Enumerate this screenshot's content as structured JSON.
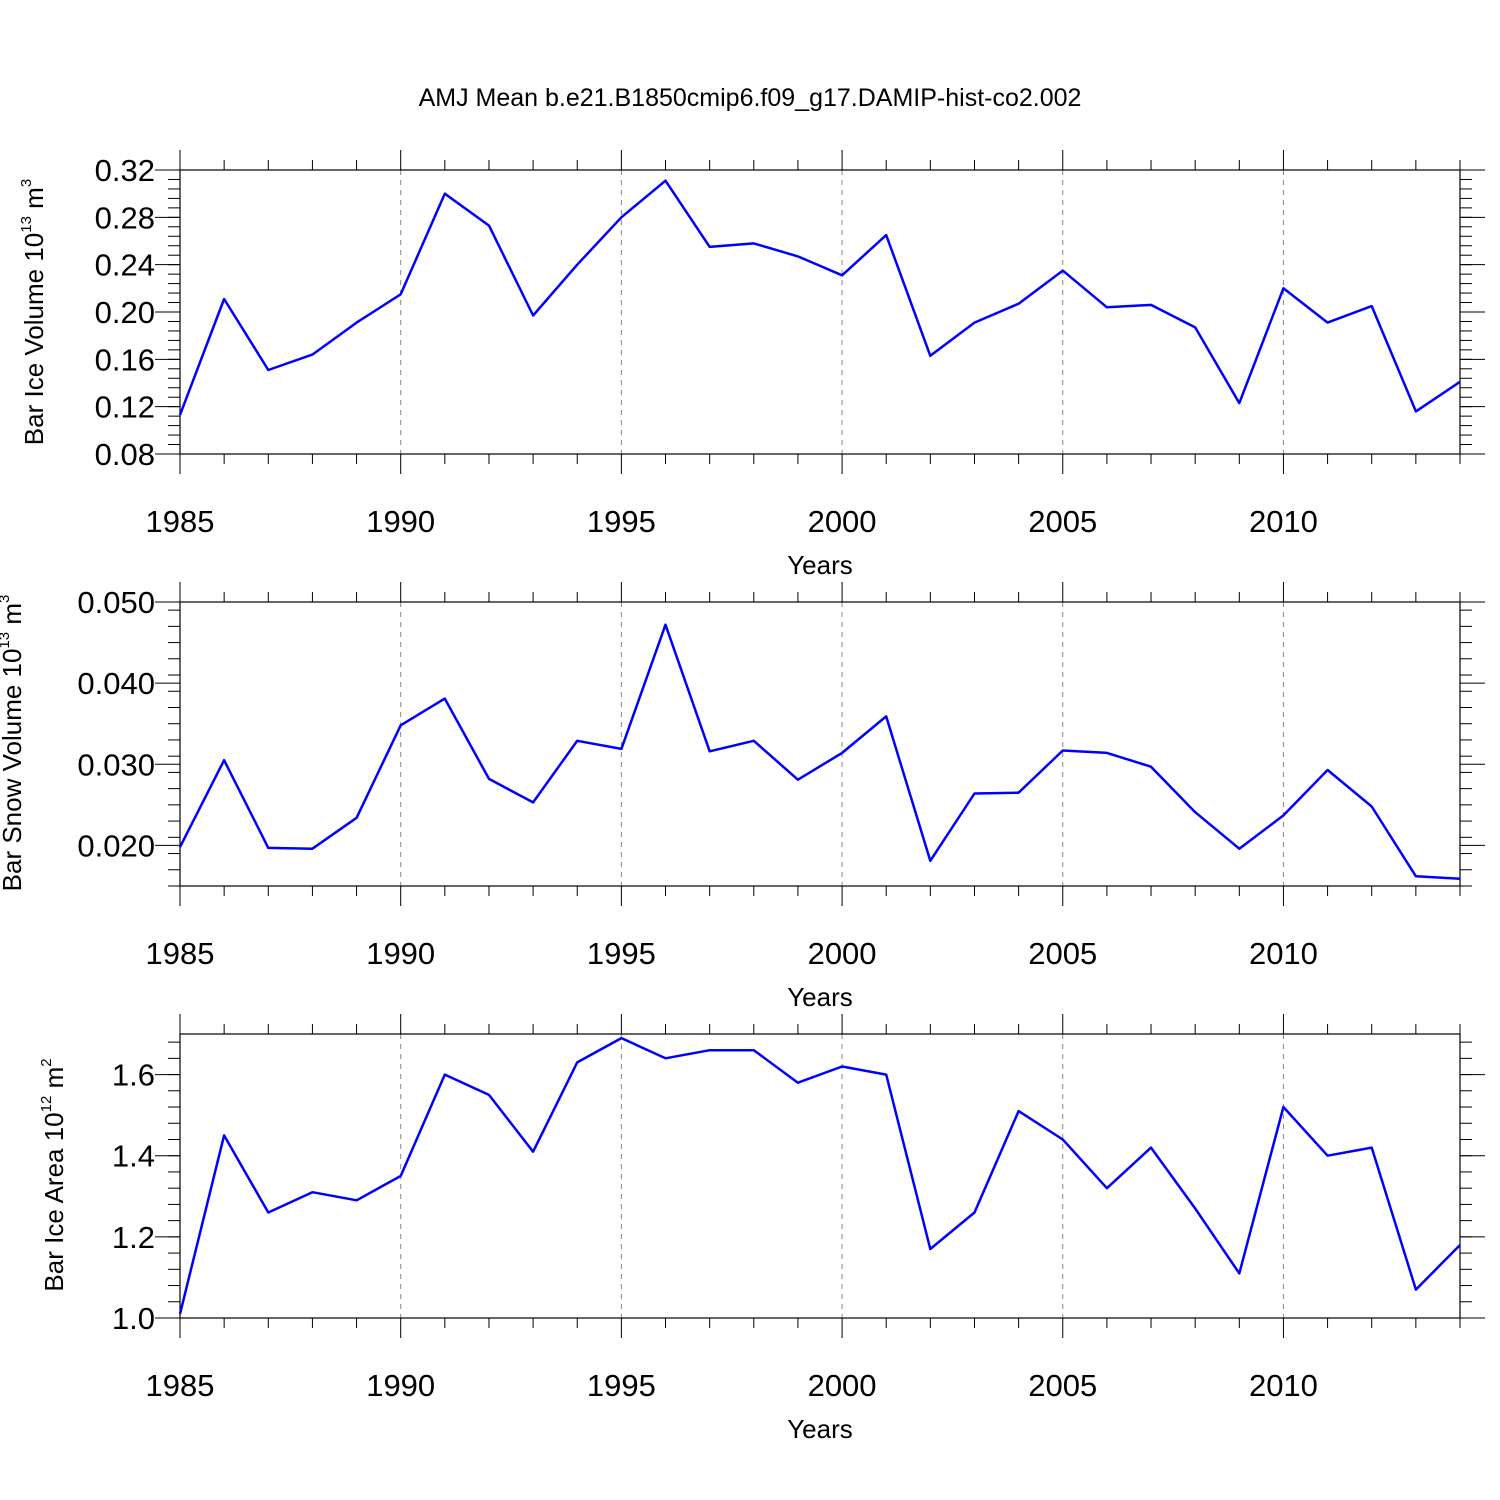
{
  "title": "AMJ Mean b.e21.B1850cmip6.f09_g17.DAMIP-hist-co2.002",
  "line_color": "#0000ff",
  "chart_data": [
    {
      "type": "line",
      "xlabel": "Years",
      "ylabel": {
        "text": "Bar Ice Volume 10",
        "sup": "13",
        "unit": " m",
        "unit_sup": "3"
      },
      "xlim": [
        1985,
        2014
      ],
      "ylim": [
        0.08,
        0.32
      ],
      "x_ticks": [
        "1985",
        "1990",
        "1995",
        "2000",
        "2005",
        "2010"
      ],
      "y_ticks": [
        "0.08",
        "0.12",
        "0.16",
        "0.20",
        "0.24",
        "0.28",
        "0.32"
      ],
      "y_minor_step": 0.008,
      "x": [
        1985,
        1986,
        1987,
        1988,
        1989,
        1990,
        1991,
        1992,
        1993,
        1994,
        1995,
        1996,
        1997,
        1998,
        1999,
        2000,
        2001,
        2002,
        2003,
        2004,
        2005,
        2006,
        2007,
        2008,
        2009,
        2010,
        2011,
        2012,
        2013,
        2014
      ],
      "values": [
        0.113,
        0.211,
        0.151,
        0.164,
        0.191,
        0.215,
        0.3,
        0.273,
        0.197,
        0.24,
        0.28,
        0.311,
        0.255,
        0.258,
        0.247,
        0.231,
        0.265,
        0.163,
        0.191,
        0.207,
        0.235,
        0.204,
        0.206,
        0.187,
        0.123,
        0.22,
        0.191,
        0.205,
        0.116,
        0.141
      ]
    },
    {
      "type": "line",
      "xlabel": "Years",
      "ylabel": {
        "text": "Bar Snow Volume 10",
        "sup": "13",
        "unit": " m",
        "unit_sup": "3"
      },
      "xlim": [
        1985,
        2014
      ],
      "ylim": [
        0.015,
        0.05
      ],
      "x_ticks": [
        "1985",
        "1990",
        "1995",
        "2000",
        "2005",
        "2010"
      ],
      "y_ticks": [
        "0.020",
        "0.030",
        "0.040",
        "0.050"
      ],
      "y_tick_values": [
        0.02,
        0.03,
        0.04,
        0.05
      ],
      "y_minor_step": 0.002,
      "x": [
        1985,
        1986,
        1987,
        1988,
        1989,
        1990,
        1991,
        1992,
        1993,
        1994,
        1995,
        1996,
        1997,
        1998,
        1999,
        2000,
        2001,
        2002,
        2003,
        2004,
        2005,
        2006,
        2007,
        2008,
        2009,
        2010,
        2011,
        2012,
        2013,
        2014
      ],
      "values": [
        0.0198,
        0.0305,
        0.0197,
        0.0196,
        0.0234,
        0.0348,
        0.0381,
        0.0282,
        0.0253,
        0.0329,
        0.0319,
        0.0472,
        0.0316,
        0.0329,
        0.0281,
        0.0314,
        0.0359,
        0.0181,
        0.0264,
        0.0265,
        0.0317,
        0.0314,
        0.0297,
        0.0241,
        0.0196,
        0.0237,
        0.0293,
        0.0248,
        0.0162,
        0.0159
      ]
    },
    {
      "type": "line",
      "xlabel": "Years",
      "ylabel": {
        "text": "Bar Ice Area 10",
        "sup": "12",
        "unit": " m",
        "unit_sup": "2"
      },
      "xlim": [
        1985,
        2014
      ],
      "ylim": [
        1.0,
        1.7
      ],
      "x_ticks": [
        "1985",
        "1990",
        "1995",
        "2000",
        "2005",
        "2010"
      ],
      "y_ticks": [
        "1.0",
        "1.2",
        "1.4",
        "1.6"
      ],
      "y_tick_values": [
        1.0,
        1.2,
        1.4,
        1.6
      ],
      "y_minor_step": 0.04,
      "x": [
        1985,
        1986,
        1987,
        1988,
        1989,
        1990,
        1991,
        1992,
        1993,
        1994,
        1995,
        1996,
        1997,
        1998,
        1999,
        2000,
        2001,
        2002,
        2003,
        2004,
        2005,
        2006,
        2007,
        2008,
        2009,
        2010,
        2011,
        2012,
        2013,
        2014
      ],
      "values": [
        1.01,
        1.45,
        1.26,
        1.31,
        1.29,
        1.35,
        1.6,
        1.55,
        1.41,
        1.63,
        1.69,
        1.64,
        1.66,
        1.66,
        1.58,
        1.62,
        1.6,
        1.17,
        1.26,
        1.51,
        1.44,
        1.32,
        1.42,
        1.27,
        1.11,
        1.52,
        1.4,
        1.42,
        1.07,
        1.18
      ]
    }
  ]
}
